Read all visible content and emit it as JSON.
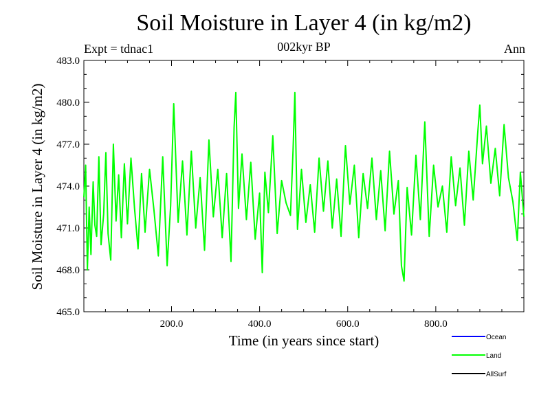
{
  "chart_data": {
    "type": "line",
    "title": "Soil Moisture in Layer 4 (in kg/m2)",
    "subtitle": "002kyr BP",
    "experiment": "Expt = tdnac1",
    "period": "Ann",
    "xlabel": "Time (in years since start)",
    "ylabel": "Soil Moisture in Layer 4 (in kg/m2)",
    "xlim": [
      1,
      1000
    ],
    "ylim": [
      465.0,
      483.0
    ],
    "x_ticks": [
      200,
      400,
      600,
      800
    ],
    "x_tick_labels": [
      "200.0",
      "400.0",
      "600.0",
      "800.0"
    ],
    "y_ticks": [
      465.0,
      468.0,
      471.0,
      474.0,
      477.0,
      480.0,
      483.0
    ],
    "y_tick_labels": [
      "465.0",
      "468.0",
      "471.0",
      "474.0",
      "477.0",
      "480.0",
      "483.0"
    ],
    "grid": false,
    "legend_position": "bottom-right",
    "series": [
      {
        "name": "Land",
        "color": "#00ff00",
        "x": [
          1,
          5,
          9,
          13,
          17,
          22,
          26,
          30,
          35,
          40,
          46,
          51,
          56,
          62,
          68,
          74,
          80,
          86,
          93,
          100,
          108,
          116,
          124,
          132,
          140,
          150,
          160,
          170,
          180,
          190,
          198,
          205,
          215,
          225,
          235,
          245,
          255,
          265,
          275,
          285,
          295,
          305,
          315,
          325,
          335,
          342,
          346,
          352,
          360,
          370,
          380,
          390,
          400,
          406,
          412,
          420,
          430,
          440,
          450,
          460,
          470,
          476,
          480,
          486,
          495,
          505,
          515,
          525,
          535,
          545,
          555,
          565,
          575,
          585,
          595,
          605,
          615,
          625,
          635,
          645,
          655,
          665,
          675,
          685,
          695,
          705,
          715,
          722,
          728,
          735,
          745,
          755,
          765,
          775,
          785,
          795,
          805,
          815,
          825,
          835,
          845,
          855,
          865,
          875,
          885,
          895,
          900,
          906,
          915,
          925,
          935,
          945,
          955,
          965,
          975,
          985,
          992,
          1000
        ],
        "values": [
          473.2,
          475.5,
          468.0,
          472.5,
          469.1,
          474.3,
          471.2,
          470.4,
          476.1,
          469.8,
          472.0,
          476.4,
          470.6,
          468.7,
          477.0,
          471.5,
          474.8,
          470.3,
          475.6,
          471.3,
          476.0,
          472.4,
          469.5,
          474.9,
          470.7,
          475.2,
          472.3,
          469.0,
          476.1,
          468.3,
          472.6,
          479.9,
          471.4,
          475.8,
          470.5,
          476.5,
          471.0,
          474.6,
          469.4,
          477.3,
          471.8,
          475.2,
          470.3,
          474.9,
          468.6,
          478.2,
          480.7,
          472.4,
          476.3,
          471.6,
          475.7,
          470.2,
          473.5,
          467.8,
          475.0,
          472.1,
          477.6,
          470.6,
          474.4,
          472.8,
          471.9,
          476.6,
          480.7,
          470.9,
          475.2,
          471.4,
          474.1,
          470.7,
          476.0,
          472.2,
          475.8,
          471.0,
          474.5,
          470.4,
          476.9,
          472.7,
          475.5,
          470.3,
          474.9,
          472.4,
          476.0,
          471.6,
          475.1,
          470.8,
          476.5,
          472.0,
          474.4,
          468.3,
          467.2,
          473.9,
          470.5,
          476.2,
          471.6,
          478.6,
          470.4,
          475.5,
          472.5,
          474.0,
          470.7,
          476.1,
          472.6,
          475.3,
          471.2,
          476.5,
          473.0,
          477.7,
          479.8,
          475.6,
          478.3,
          474.2,
          476.7,
          473.3,
          478.4,
          474.6,
          472.9,
          470.1,
          475.0,
          471.8
        ]
      }
    ]
  },
  "legend": {
    "items": [
      {
        "label": "Ocean",
        "color": "#0000ff"
      },
      {
        "label": "Land",
        "color": "#00ff00"
      },
      {
        "label": "AllSurf",
        "color": "#000000"
      }
    ]
  }
}
